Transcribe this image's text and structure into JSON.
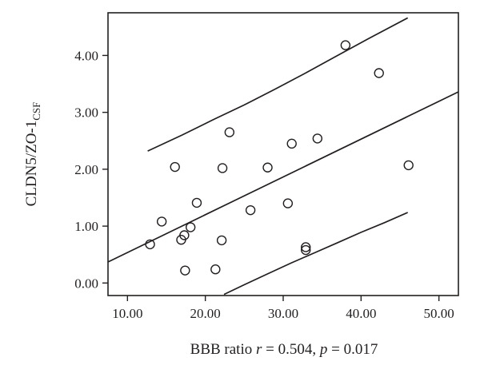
{
  "chart_data": {
    "type": "scatter",
    "xlabel_prefix": "BBB ratio",
    "stat_r_symbol": "r",
    "stat_r_value": "= 0.504,",
    "stat_p_symbol": "p",
    "stat_p_value": "= 0.017",
    "ylabel_main": "CLDN5/ZO-1",
    "ylabel_sub": "CSF",
    "xlim": [
      7.5,
      52.5
    ],
    "ylim": [
      -0.22,
      4.75
    ],
    "xticks": [
      10,
      20,
      30,
      40,
      50
    ],
    "xtick_labels": [
      "10.00",
      "20.00",
      "30.00",
      "40.00",
      "50.00"
    ],
    "yticks": [
      0,
      1,
      2,
      3,
      4
    ],
    "ytick_labels": [
      "0.00",
      "1.00",
      "2.00",
      "3.00",
      "4.00"
    ],
    "grid": false,
    "points": [
      {
        "x": 12.9,
        "y": 0.68
      },
      {
        "x": 14.4,
        "y": 1.08
      },
      {
        "x": 16.1,
        "y": 2.04
      },
      {
        "x": 16.9,
        "y": 0.76
      },
      {
        "x": 17.3,
        "y": 0.84
      },
      {
        "x": 17.4,
        "y": 0.22
      },
      {
        "x": 18.1,
        "y": 0.98
      },
      {
        "x": 18.9,
        "y": 1.41
      },
      {
        "x": 21.3,
        "y": 0.24
      },
      {
        "x": 22.1,
        "y": 0.75
      },
      {
        "x": 22.2,
        "y": 2.02
      },
      {
        "x": 23.1,
        "y": 2.65
      },
      {
        "x": 25.8,
        "y": 1.28
      },
      {
        "x": 28.0,
        "y": 2.03
      },
      {
        "x": 30.6,
        "y": 1.4
      },
      {
        "x": 31.1,
        "y": 2.45
      },
      {
        "x": 32.9,
        "y": 0.63
      },
      {
        "x": 32.9,
        "y": 0.58
      },
      {
        "x": 34.4,
        "y": 2.54
      },
      {
        "x": 38.0,
        "y": 4.18
      },
      {
        "x": 42.3,
        "y": 3.69
      },
      {
        "x": 46.1,
        "y": 2.07
      }
    ],
    "fit_line": {
      "x": [
        7.5,
        52.5
      ],
      "y": [
        0.37,
        3.36
      ]
    },
    "upper_band": {
      "x": [
        12.6,
        17.0,
        21.0,
        25.0,
        29.0,
        33.0,
        37.0,
        41.0,
        46.0
      ],
      "y": [
        2.32,
        2.6,
        2.87,
        3.13,
        3.41,
        3.7,
        4.0,
        4.3,
        4.66
      ]
    },
    "lower_band": {
      "x": [
        22.4,
        25.0,
        28.0,
        31.0,
        34.0,
        37.0,
        40.0,
        43.0,
        46.0
      ],
      "y": [
        -0.2,
        -0.03,
        0.16,
        0.35,
        0.53,
        0.71,
        0.89,
        1.06,
        1.24
      ]
    }
  }
}
